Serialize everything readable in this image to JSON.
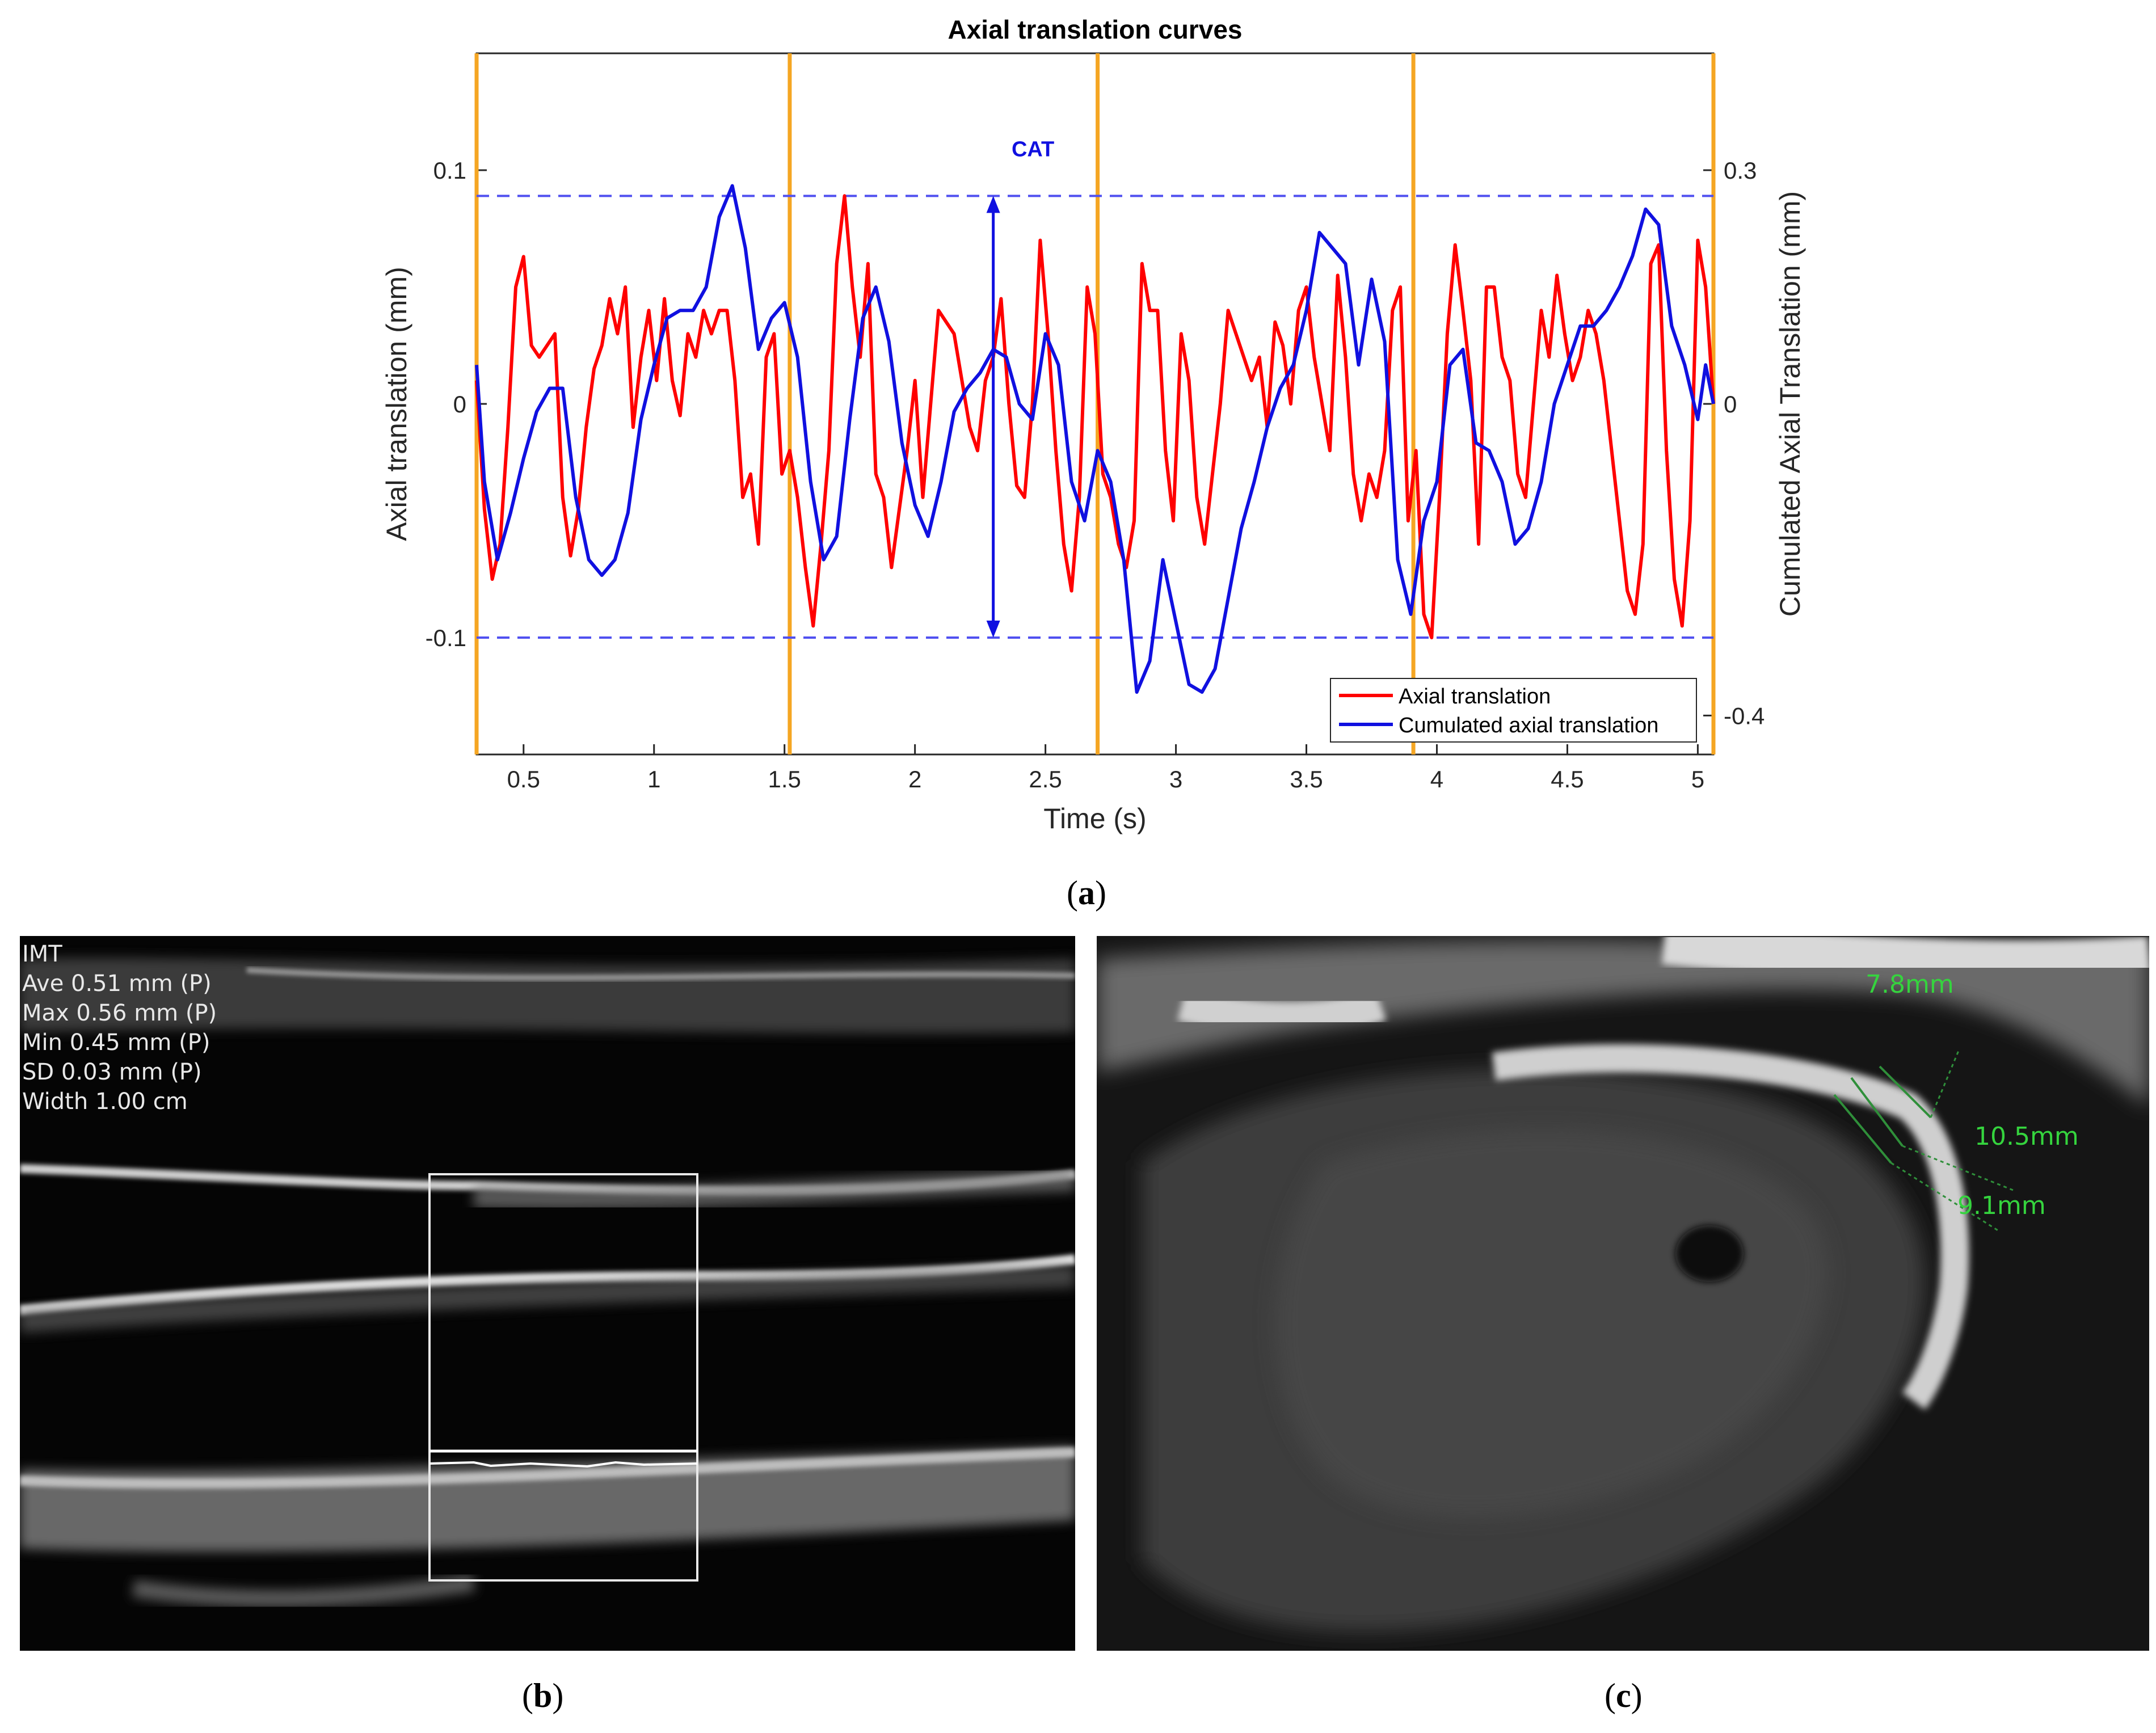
{
  "panels": {
    "a_caption": "a",
    "b_caption": "b",
    "c_caption": "c"
  },
  "chart_data": {
    "type": "line",
    "title": "Axial translation curves",
    "xlabel": "Time (s)",
    "ylabel": "Axial translation (mm)",
    "ylabel_right": "Cumulated Axial Translation (mm)",
    "xlim": [
      0.32,
      5.06
    ],
    "ylim": [
      -0.15,
      0.15
    ],
    "ylim_right": [
      -0.45,
      0.45
    ],
    "xticks": [
      "0.5",
      "1",
      "1.5",
      "2",
      "2.5",
      "3",
      "3.5",
      "4",
      "4.5",
      "5"
    ],
    "yticks_left": [
      "0.1",
      "0",
      "-0.1"
    ],
    "yticks_right": [
      "0.3",
      "0",
      "-0.4"
    ],
    "grid": false,
    "legend_position": "bottom-right",
    "annotation": "CAT",
    "cat_arrow_x": 2.3,
    "cat_lines_y": [
      0.089,
      -0.1
    ],
    "cycle_markers_x": [
      1.52,
      2.7,
      3.91
    ],
    "series": [
      {
        "name": "Axial translation",
        "color": "#ff0000",
        "x": [
          0.32,
          0.35,
          0.38,
          0.41,
          0.44,
          0.47,
          0.5,
          0.53,
          0.56,
          0.59,
          0.62,
          0.65,
          0.68,
          0.71,
          0.74,
          0.77,
          0.8,
          0.83,
          0.86,
          0.89,
          0.92,
          0.95,
          0.98,
          1.01,
          1.04,
          1.07,
          1.1,
          1.13,
          1.16,
          1.19,
          1.22,
          1.25,
          1.28,
          1.31,
          1.34,
          1.37,
          1.4,
          1.43,
          1.46,
          1.49,
          1.52,
          1.55,
          1.58,
          1.61,
          1.64,
          1.67,
          1.7,
          1.73,
          1.76,
          1.79,
          1.82,
          1.85,
          1.88,
          1.91,
          1.94,
          1.97,
          2.0,
          2.03,
          2.06,
          2.09,
          2.12,
          2.15,
          2.18,
          2.21,
          2.24,
          2.27,
          2.3,
          2.33,
          2.36,
          2.39,
          2.42,
          2.45,
          2.48,
          2.51,
          2.54,
          2.57,
          2.6,
          2.63,
          2.66,
          2.69,
          2.72,
          2.75,
          2.78,
          2.81,
          2.84,
          2.87,
          2.9,
          2.93,
          2.96,
          2.99,
          3.02,
          3.05,
          3.08,
          3.11,
          3.14,
          3.17,
          3.2,
          3.23,
          3.26,
          3.29,
          3.32,
          3.35,
          3.38,
          3.41,
          3.44,
          3.47,
          3.5,
          3.53,
          3.56,
          3.59,
          3.62,
          3.65,
          3.68,
          3.71,
          3.74,
          3.77,
          3.8,
          3.83,
          3.86,
          3.89,
          3.92,
          3.95,
          3.98,
          4.01,
          4.04,
          4.07,
          4.1,
          4.13,
          4.16,
          4.19,
          4.22,
          4.25,
          4.28,
          4.31,
          4.34,
          4.37,
          4.4,
          4.43,
          4.46,
          4.49,
          4.52,
          4.55,
          4.58,
          4.61,
          4.64,
          4.67,
          4.7,
          4.73,
          4.76,
          4.79,
          4.82,
          4.85,
          4.88,
          4.91,
          4.94,
          4.97,
          5.0,
          5.03,
          5.06
        ],
        "y": [
          0.01,
          -0.045,
          -0.075,
          -0.06,
          -0.01,
          0.05,
          0.063,
          0.025,
          0.02,
          0.025,
          0.03,
          -0.04,
          -0.065,
          -0.045,
          -0.01,
          0.015,
          0.025,
          0.045,
          0.03,
          0.05,
          -0.01,
          0.02,
          0.04,
          0.01,
          0.045,
          0.01,
          -0.005,
          0.03,
          0.02,
          0.04,
          0.03,
          0.04,
          0.04,
          0.01,
          -0.04,
          -0.03,
          -0.06,
          0.02,
          0.03,
          -0.03,
          -0.02,
          -0.04,
          -0.07,
          -0.095,
          -0.06,
          -0.02,
          0.06,
          0.089,
          0.05,
          0.02,
          0.06,
          -0.03,
          -0.04,
          -0.07,
          -0.045,
          -0.02,
          0.01,
          -0.04,
          0.0,
          0.04,
          0.035,
          0.03,
          0.01,
          -0.01,
          -0.02,
          0.01,
          0.02,
          0.045,
          0.0,
          -0.035,
          -0.04,
          0.0,
          0.07,
          0.03,
          -0.02,
          -0.06,
          -0.08,
          -0.04,
          0.05,
          0.03,
          -0.03,
          -0.04,
          -0.06,
          -0.07,
          -0.05,
          0.06,
          0.04,
          0.04,
          -0.02,
          -0.05,
          0.03,
          0.01,
          -0.04,
          -0.06,
          -0.03,
          0.0,
          0.04,
          0.03,
          0.02,
          0.01,
          0.02,
          -0.01,
          0.035,
          0.025,
          0.0,
          0.04,
          0.05,
          0.02,
          0.0,
          -0.02,
          0.055,
          0.02,
          -0.03,
          -0.05,
          -0.03,
          -0.04,
          -0.02,
          0.04,
          0.05,
          -0.05,
          -0.02,
          -0.09,
          -0.1,
          -0.04,
          0.03,
          0.068,
          0.04,
          0.01,
          -0.06,
          0.05,
          0.05,
          0.02,
          0.01,
          -0.03,
          -0.04,
          0.0,
          0.04,
          0.02,
          0.055,
          0.03,
          0.01,
          0.02,
          0.04,
          0.03,
          0.01,
          -0.02,
          -0.05,
          -0.08,
          -0.09,
          -0.06,
          0.06,
          0.068,
          -0.02,
          -0.075,
          -0.095,
          -0.05,
          0.07,
          0.05,
          0.0
        ]
      },
      {
        "name": "Cumulated axial translation",
        "color": "#1010e0",
        "axis": "right",
        "x": [
          0.32,
          0.35,
          0.4,
          0.45,
          0.5,
          0.55,
          0.6,
          0.65,
          0.7,
          0.75,
          0.8,
          0.85,
          0.9,
          0.95,
          1.0,
          1.05,
          1.1,
          1.15,
          1.2,
          1.25,
          1.3,
          1.35,
          1.4,
          1.45,
          1.5,
          1.55,
          1.6,
          1.65,
          1.7,
          1.75,
          1.8,
          1.85,
          1.9,
          1.95,
          2.0,
          2.05,
          2.1,
          2.15,
          2.2,
          2.25,
          2.3,
          2.35,
          2.4,
          2.45,
          2.5,
          2.55,
          2.6,
          2.65,
          2.7,
          2.75,
          2.8,
          2.85,
          2.9,
          2.95,
          3.0,
          3.05,
          3.1,
          3.15,
          3.2,
          3.25,
          3.3,
          3.35,
          3.4,
          3.45,
          3.5,
          3.55,
          3.6,
          3.65,
          3.7,
          3.75,
          3.8,
          3.85,
          3.9,
          3.95,
          4.0,
          4.05,
          4.1,
          4.15,
          4.2,
          4.25,
          4.3,
          4.35,
          4.4,
          4.45,
          4.5,
          4.55,
          4.6,
          4.65,
          4.7,
          4.75,
          4.8,
          4.85,
          4.9,
          4.95,
          5.0,
          5.03,
          5.06
        ],
        "y": [
          0.05,
          -0.1,
          -0.2,
          -0.14,
          -0.07,
          -0.01,
          0.02,
          0.02,
          -0.12,
          -0.2,
          -0.22,
          -0.2,
          -0.14,
          -0.02,
          0.05,
          0.11,
          0.12,
          0.12,
          0.15,
          0.24,
          0.28,
          0.2,
          0.07,
          0.11,
          0.13,
          0.06,
          -0.1,
          -0.2,
          -0.17,
          -0.02,
          0.11,
          0.15,
          0.08,
          -0.05,
          -0.13,
          -0.17,
          -0.1,
          -0.01,
          0.02,
          0.04,
          0.07,
          0.06,
          0.0,
          -0.02,
          0.09,
          0.05,
          -0.1,
          -0.15,
          -0.06,
          -0.1,
          -0.2,
          -0.37,
          -0.33,
          -0.2,
          -0.28,
          -0.36,
          -0.37,
          -0.34,
          -0.25,
          -0.16,
          -0.1,
          -0.03,
          0.02,
          0.05,
          0.12,
          0.22,
          0.2,
          0.18,
          0.05,
          0.16,
          0.08,
          -0.2,
          -0.27,
          -0.15,
          -0.1,
          0.05,
          0.07,
          -0.05,
          -0.06,
          -0.1,
          -0.18,
          -0.16,
          -0.1,
          0.0,
          0.05,
          0.1,
          0.1,
          0.12,
          0.15,
          0.19,
          0.25,
          0.23,
          0.1,
          0.05,
          -0.02,
          0.05,
          0.0
        ]
      }
    ]
  },
  "panel_b": {
    "overlay_lines": [
      "IMT",
      "Ave 0.51 mm (P)",
      "Max 0.56 mm (P)",
      "Min 0.45 mm (P)",
      "SD 0.03 mm (P)",
      "Width 1.00 cm"
    ]
  },
  "panel_c": {
    "measurements": [
      "7.8mm",
      "10.5mm",
      "9.1mm"
    ]
  }
}
